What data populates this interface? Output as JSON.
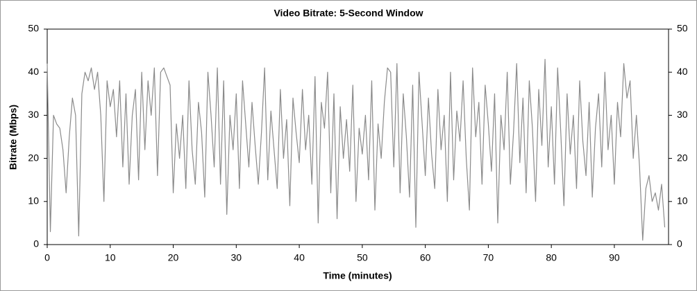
{
  "chart_data": {
    "type": "line",
    "title": "Video Bitrate: 5-Second Window",
    "x_label": "Time (minutes)",
    "y_label": "Bitrate (Mbps)",
    "xlim": [
      0,
      98.6
    ],
    "xticks": [
      0,
      10,
      20,
      30,
      40,
      50,
      60,
      70,
      80,
      90
    ],
    "ylim": [
      0,
      50
    ],
    "yticks": [
      0,
      10,
      20,
      30,
      40,
      50
    ],
    "right_axis": true,
    "series": [
      {
        "color": "#8a8a8a",
        "x": [
          0,
          0.5,
          1,
          1.5,
          2,
          2.5,
          3,
          3.5,
          4,
          4.5,
          5,
          5.5,
          6,
          6.5,
          7,
          7.5,
          8,
          8.5,
          9,
          9.5,
          10,
          10.5,
          11,
          11.5,
          12,
          12.5,
          13,
          13.5,
          14,
          14.5,
          15,
          15.5,
          16,
          16.5,
          17,
          17.5,
          18,
          18.5,
          19,
          19.5,
          20,
          20.5,
          21,
          21.5,
          22,
          22.5,
          23,
          23.5,
          24,
          24.5,
          25,
          25.5,
          26,
          26.5,
          27,
          27.5,
          28,
          28.5,
          29,
          29.5,
          30,
          30.5,
          31,
          31.5,
          32,
          32.5,
          33,
          33.5,
          34,
          34.5,
          35,
          35.5,
          36,
          36.5,
          37,
          37.5,
          38,
          38.5,
          39,
          39.5,
          40,
          40.5,
          41,
          41.5,
          42,
          42.5,
          43,
          43.5,
          44,
          44.5,
          45,
          45.5,
          46,
          46.5,
          47,
          47.5,
          48,
          48.5,
          49,
          49.5,
          50,
          50.5,
          51,
          51.5,
          52,
          52.5,
          53,
          53.5,
          54,
          54.5,
          55,
          55.5,
          56,
          56.5,
          57,
          57.5,
          58,
          58.5,
          59,
          59.5,
          60,
          60.5,
          61,
          61.5,
          62,
          62.5,
          63,
          63.5,
          64,
          64.5,
          65,
          65.5,
          66,
          66.5,
          67,
          67.5,
          68,
          68.5,
          69,
          69.5,
          70,
          70.5,
          71,
          71.5,
          72,
          72.5,
          73,
          73.5,
          74,
          74.5,
          75,
          75.5,
          76,
          76.5,
          77,
          77.5,
          78,
          78.5,
          79,
          79.5,
          80,
          80.5,
          81,
          81.5,
          82,
          82.5,
          83,
          83.5,
          84,
          84.5,
          85,
          85.5,
          86,
          86.5,
          87,
          87.5,
          88,
          88.5,
          89,
          89.5,
          90,
          90.5,
          91,
          91.5,
          92,
          92.5,
          93,
          93.5,
          94,
          94.5,
          95,
          95.5,
          96,
          96.5,
          97,
          97.5,
          98
        ],
        "values": [
          42,
          3,
          30,
          28,
          27,
          22,
          12,
          25,
          34,
          30,
          2,
          35,
          40,
          38,
          41,
          36,
          40,
          30,
          10,
          38,
          32,
          36,
          25,
          38,
          18,
          35,
          14,
          30,
          36,
          15,
          40,
          22,
          38,
          30,
          41,
          16,
          40,
          41,
          39,
          37,
          12,
          28,
          20,
          30,
          13,
          38,
          22,
          14,
          33,
          26,
          11,
          40,
          30,
          18,
          41,
          14,
          38,
          7,
          30,
          22,
          35,
          13,
          38,
          28,
          18,
          33,
          23,
          14,
          26,
          41,
          15,
          31,
          22,
          13,
          36,
          20,
          29,
          9,
          34,
          26,
          19,
          36,
          22,
          30,
          14,
          39,
          5,
          33,
          27,
          40,
          12,
          35,
          6,
          32,
          20,
          29,
          17,
          37,
          10,
          27,
          21,
          30,
          15,
          38,
          8,
          28,
          20,
          33,
          41,
          40,
          18,
          42,
          12,
          35,
          25,
          11,
          37,
          4,
          40,
          28,
          16,
          34,
          21,
          13,
          36,
          22,
          30,
          10,
          40,
          15,
          31,
          24,
          38,
          20,
          8,
          41,
          25,
          33,
          14,
          37,
          28,
          17,
          35,
          5,
          30,
          22,
          40,
          14,
          26,
          42,
          19,
          34,
          12,
          38,
          27,
          10,
          36,
          23,
          43,
          18,
          32,
          14,
          41,
          26,
          9,
          35,
          21,
          30,
          13,
          38,
          24,
          16,
          33,
          11,
          27,
          35,
          18,
          40,
          22,
          30,
          14,
          33,
          25,
          42,
          34,
          38,
          20,
          30,
          18,
          1,
          13,
          16,
          10,
          12,
          8,
          14,
          4
        ]
      }
    ]
  }
}
